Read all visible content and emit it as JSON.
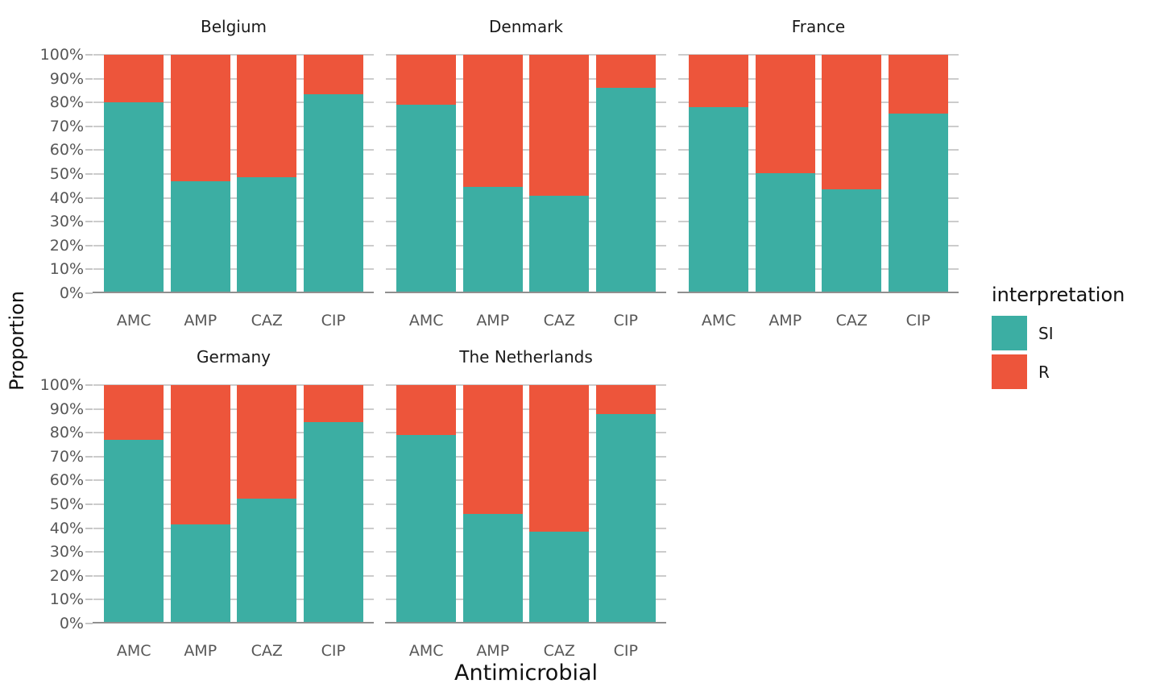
{
  "chart_data": {
    "type": "bar",
    "stacked": true,
    "percent": true,
    "title": "",
    "xlabel": "Antimicrobial",
    "ylabel": "Proportion",
    "ylim": [
      0,
      100
    ],
    "grid": "horizontal",
    "y_ticks": [
      "0%",
      "10%",
      "20%",
      "30%",
      "40%",
      "50%",
      "60%",
      "70%",
      "80%",
      "90%",
      "100%"
    ],
    "categories": [
      "AMC",
      "AMP",
      "CAZ",
      "CIP"
    ],
    "facet_layout": {
      "rows": 2,
      "cols": 3
    },
    "legend": {
      "title": "interpretation",
      "position": "right",
      "items": [
        {
          "label": "SI",
          "color": "#3CAEA3"
        },
        {
          "label": "R",
          "color": "#ED553B"
        }
      ]
    },
    "series_colors": {
      "SI": "#3CAEA3",
      "R": "#ED553B"
    },
    "facets": [
      {
        "name": "Belgium",
        "series": [
          {
            "name": "SI",
            "values": [
              80,
              47,
              48.5,
              83.5
            ]
          },
          {
            "name": "R",
            "values": [
              20,
              53,
              51.5,
              16.5
            ]
          }
        ]
      },
      {
        "name": "Denmark",
        "series": [
          {
            "name": "SI",
            "values": [
              79,
              44.5,
              41,
              86
            ]
          },
          {
            "name": "R",
            "values": [
              21,
              55.5,
              59,
              14
            ]
          }
        ]
      },
      {
        "name": "France",
        "series": [
          {
            "name": "SI",
            "values": [
              78,
              50.5,
              43.5,
              75.5
            ]
          },
          {
            "name": "R",
            "values": [
              22,
              49.5,
              56.5,
              24.5
            ]
          }
        ]
      },
      {
        "name": "Germany",
        "series": [
          {
            "name": "SI",
            "values": [
              77,
              41.5,
              52.5,
              84.5
            ]
          },
          {
            "name": "R",
            "values": [
              23,
              58.5,
              47.5,
              15.5
            ]
          }
        ]
      },
      {
        "name": "The Netherlands",
        "series": [
          {
            "name": "SI",
            "values": [
              79,
              46,
              38.5,
              88
            ]
          },
          {
            "name": "R",
            "values": [
              21,
              54,
              61.5,
              12
            ]
          }
        ]
      }
    ],
    "style": {
      "gridline_color": "#CCCCCC",
      "axis_line_color": "#8F8F8F",
      "tick_label_color": "#575757",
      "facet_title_color": "#1A1A1A",
      "background": "#FFFFFF"
    }
  }
}
